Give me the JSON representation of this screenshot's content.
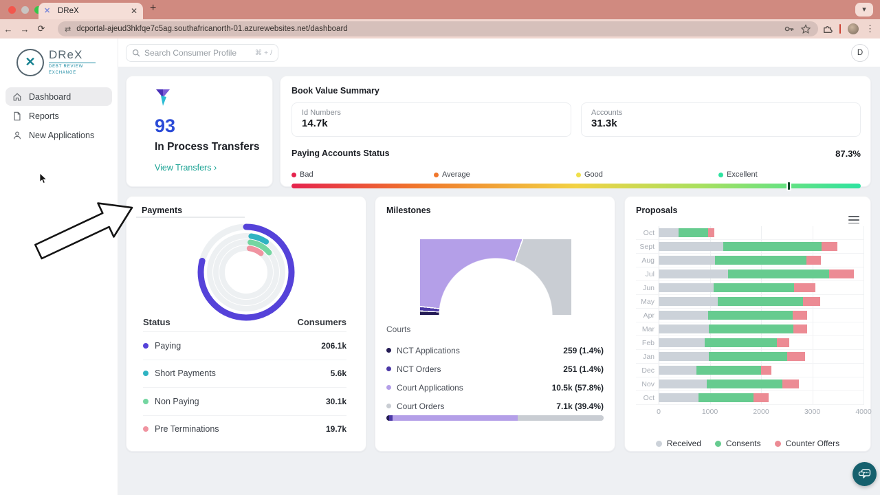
{
  "browser": {
    "tab_title": "DReX",
    "url": "dcportal-ajeud3hkfqe7c5ag.southafricanorth-01.azurewebsites.net/dashboard"
  },
  "sidebar": {
    "logo_title": "DReX",
    "logo_mark": "✕",
    "logo_subtitle": "DEBT REVIEW EXCHANGE",
    "items": [
      {
        "label": "Dashboard",
        "active": true
      },
      {
        "label": "Reports",
        "active": false
      },
      {
        "label": "New Applications",
        "active": false
      }
    ]
  },
  "header": {
    "search_placeholder": "Search Consumer Profile",
    "search_shortcut": "⌘ + /",
    "avatar_initial": "D"
  },
  "transfers": {
    "count": "93",
    "title": "In Process Transfers",
    "link_label": "View Transfers",
    "link_chevron": "›"
  },
  "book_value": {
    "title": "Book Value Summary",
    "stats": [
      {
        "label": "Id Numbers",
        "value": "14.7k"
      },
      {
        "label": "Accounts",
        "value": "31.3k"
      }
    ],
    "paying_status": {
      "title": "Paying Accounts Status",
      "percent": 87.3,
      "percent_label": "87.3%",
      "legend": [
        {
          "label": "Bad",
          "color": "#e5234d"
        },
        {
          "label": "Average",
          "color": "#f0762b"
        },
        {
          "label": "Good",
          "color": "#f0e04a"
        },
        {
          "label": "Excellent",
          "color": "#2de3a0"
        }
      ]
    }
  },
  "chart_data": [
    {
      "id": "payments",
      "type": "donut-rings",
      "title": "Payments",
      "col_headers": [
        "Status",
        "Consumers"
      ],
      "series": [
        {
          "name": "Paying",
          "value": 206100,
          "value_label": "206.1k",
          "color": "#5542d9",
          "ring_pct": 79,
          "ring_start_deg": 0,
          "radius": 66,
          "width": 9
        },
        {
          "name": "Short Payments",
          "value": 5600,
          "value_label": "5.6k",
          "color": "#2fb3c2",
          "ring_pct": 7,
          "ring_start_deg": 8,
          "radius": 53,
          "width": 8
        },
        {
          "name": "Non Paying",
          "value": 30100,
          "value_label": "30.1k",
          "color": "#74d6a1",
          "ring_pct": 11.5,
          "ring_start_deg": 8,
          "radius": 44,
          "width": 8
        },
        {
          "name": "Pre Terminations",
          "value": 19700,
          "value_label": "19.7k",
          "color": "#f094a1",
          "ring_pct": 8.3,
          "ring_start_deg": 8,
          "radius": 35,
          "width": 8
        }
      ]
    },
    {
      "id": "milestones",
      "type": "gauge",
      "title": "Milestones",
      "subtitle": "Courts",
      "segments": [
        {
          "name": "NCT Applications",
          "value": 259,
          "value_label": "259 (1.4%)",
          "pct": 1.4,
          "color": "#251c55"
        },
        {
          "name": "NCT Orders",
          "value": 251,
          "value_label": "251 (1.4%)",
          "pct": 1.4,
          "color": "#4b38a6"
        },
        {
          "name": "Court Applications",
          "value": 10500,
          "value_label": "10.5k (57.8%)",
          "pct": 57.8,
          "color": "#b49fe8"
        },
        {
          "name": "Court Orders",
          "value": 7100,
          "value_label": "7.1k (39.4%)",
          "pct": 39.4,
          "color": "#c9cdd3"
        }
      ]
    },
    {
      "id": "proposals",
      "type": "stacked-bar-horizontal",
      "title": "Proposals",
      "categories": [
        "Oct",
        "Sept",
        "Aug",
        "Jul",
        "Jun",
        "May",
        "Apr",
        "Mar",
        "Feb",
        "Jan",
        "Dec",
        "Nov",
        "Oct"
      ],
      "series": [
        {
          "name": "Received",
          "color": "#ccd2d9",
          "values": [
            390,
            1260,
            1100,
            1350,
            1080,
            1150,
            970,
            975,
            905,
            985,
            740,
            940,
            780
          ]
        },
        {
          "name": "Consents",
          "color": "#66cb8f",
          "values": [
            575,
            1920,
            1790,
            1985,
            1570,
            1670,
            1645,
            1650,
            1400,
            1530,
            1260,
            1475,
            1070
          ]
        },
        {
          "name": "Counter Offers",
          "color": "#ec8b94",
          "values": [
            125,
            310,
            280,
            475,
            405,
            340,
            285,
            275,
            250,
            345,
            200,
            320,
            295
          ]
        }
      ],
      "xlim": [
        0,
        4000
      ],
      "x_ticks": [
        "0",
        "1000",
        "2000",
        "3000",
        "4000"
      ],
      "legend_position": "bottom"
    }
  ],
  "chat_fab_color": "#15606d"
}
